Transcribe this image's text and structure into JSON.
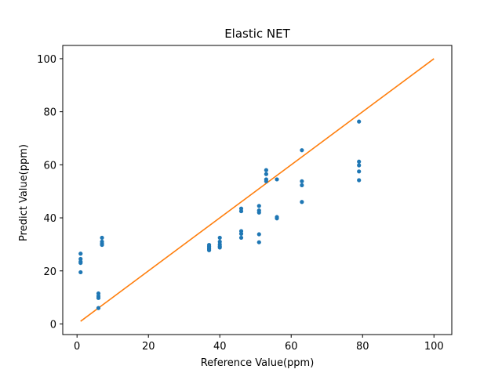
{
  "chart_data": {
    "type": "scatter",
    "title": "Elastic NET",
    "xlabel": "Reference Value(ppm)",
    "ylabel": "Predict Value(ppm)",
    "xlim": [
      -4,
      105
    ],
    "ylim": [
      -4,
      105
    ],
    "xticks": [
      0,
      20,
      40,
      60,
      80,
      100
    ],
    "yticks": [
      0,
      20,
      40,
      60,
      80,
      100
    ],
    "grid": false,
    "colors": {
      "points": "#1f77b4",
      "reference_line": "#ff7f0e"
    },
    "series": [
      {
        "type": "scatter",
        "x": [
          1,
          1,
          1,
          1,
          1,
          6,
          6,
          6,
          6,
          7,
          7,
          7,
          7,
          37,
          37,
          37,
          37,
          37,
          40,
          40,
          40,
          40,
          40,
          46,
          46,
          46,
          46,
          46,
          51,
          51,
          51,
          51,
          51,
          53,
          53,
          53,
          53,
          56,
          56,
          56,
          63,
          63,
          63,
          63,
          79,
          79,
          79,
          79,
          79
        ],
        "y": [
          26.5,
          24.5,
          23.5,
          23.0,
          19.5,
          11.5,
          10.5,
          9.8,
          6.0,
          32.5,
          31.0,
          30.3,
          29.8,
          29.8,
          29.2,
          28.6,
          28.2,
          27.8,
          32.5,
          31.0,
          30.0,
          29.3,
          28.8,
          43.5,
          42.5,
          35.0,
          34.0,
          32.5,
          44.5,
          42.8,
          42.0,
          33.8,
          30.8,
          58.0,
          56.5,
          54.5,
          53.8,
          54.5,
          40.3,
          39.8,
          65.5,
          53.8,
          52.3,
          46.0,
          76.3,
          61.2,
          59.8,
          57.5,
          54.2
        ]
      },
      {
        "type": "line",
        "x": [
          1,
          100
        ],
        "y": [
          1,
          100
        ]
      }
    ]
  }
}
